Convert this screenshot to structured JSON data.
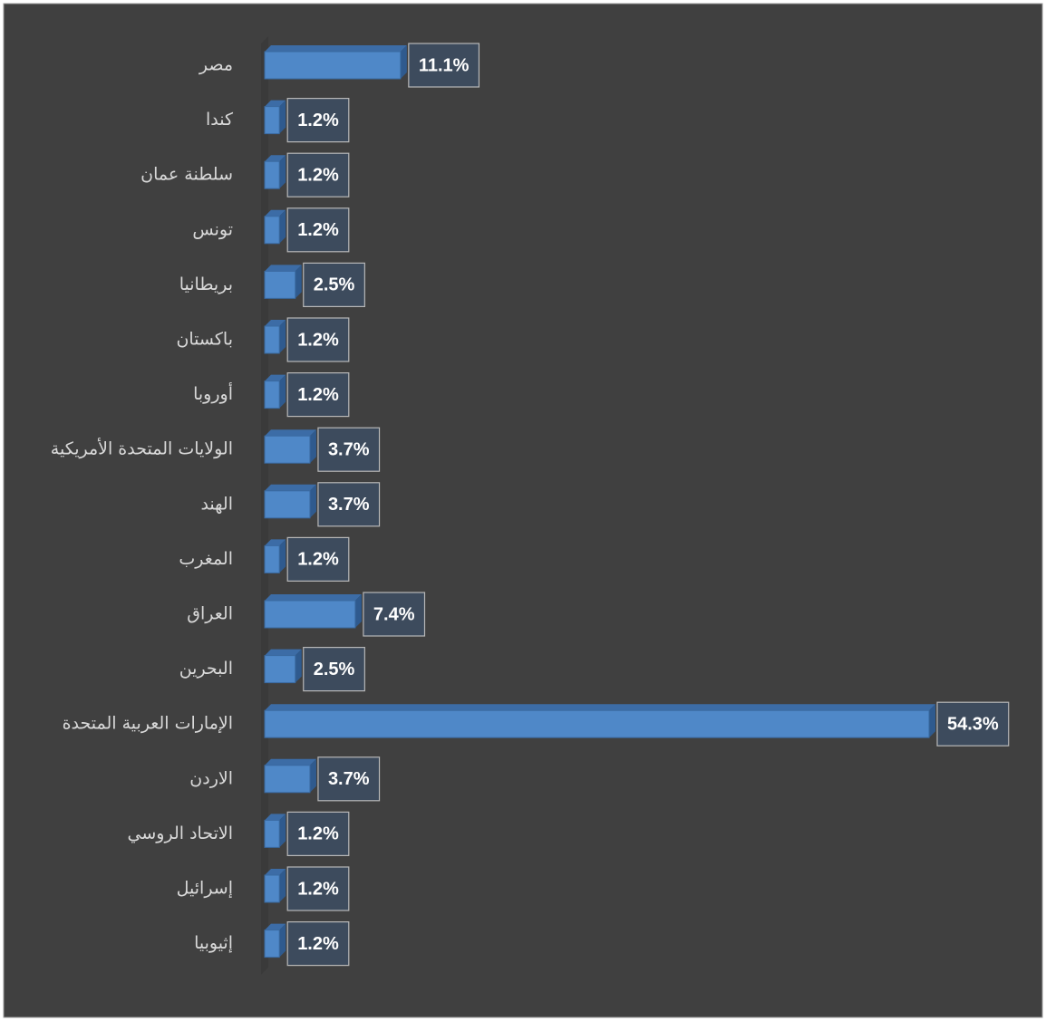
{
  "chart_data": {
    "type": "bar",
    "orientation": "horizontal",
    "categories": [
      "مصر",
      "كندا",
      "سلطنة عمان",
      "تونس",
      "بريطانيا",
      "باكستان",
      "أوروبا",
      "الولايات المتحدة الأمريكية",
      "الهند",
      "المغرب",
      "العراق",
      "البحرين",
      "الإمارات العربية المتحدة",
      "الاردن",
      "الاتحاد الروسي",
      "إسرائيل",
      "إثيوبيا"
    ],
    "values": [
      11.1,
      1.2,
      1.2,
      1.2,
      2.5,
      1.2,
      1.2,
      3.7,
      3.7,
      1.2,
      7.4,
      2.5,
      54.3,
      3.7,
      1.2,
      1.2,
      1.2
    ],
    "value_labels": [
      "11.1%",
      "1.2%",
      "1.2%",
      "1.2%",
      "2.5%",
      "1.2%",
      "1.2%",
      "3.7%",
      "3.7%",
      "1.2%",
      "7.4%",
      "2.5%",
      "54.3%",
      "3.7%",
      "1.2%",
      "1.2%",
      "1.2%"
    ],
    "color": "#4f88c8"
  }
}
